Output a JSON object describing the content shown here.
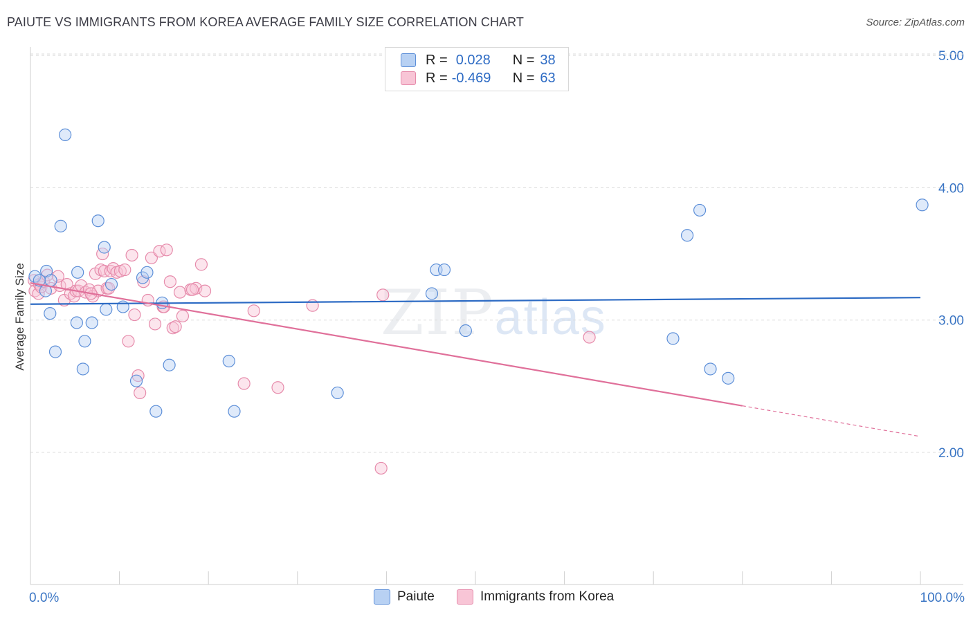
{
  "header": {
    "title": "PAIUTE VS IMMIGRANTS FROM KOREA AVERAGE FAMILY SIZE CORRELATION CHART",
    "source": "Source: ZipAtlas.com"
  },
  "legend": {
    "row1": {
      "r_label": "R =",
      "r_value": "0.028",
      "n_label": "N =",
      "n_value": "38"
    },
    "row2": {
      "r_label": "R =",
      "r_value": "-0.469",
      "n_label": "N =",
      "n_value": "63"
    },
    "series1": "Paiute",
    "series2": "Immigrants from Korea"
  },
  "watermark": {
    "zip": "ZIP",
    "atlas": "atlas"
  },
  "colors": {
    "paiute_fill": "#b8d1f3",
    "paiute_stroke": "#5d8fd8",
    "paiute_line": "#2d6bc4",
    "korea_fill": "#f8c5d6",
    "korea_stroke": "#e68bab",
    "korea_line": "#e0709a",
    "axis_text": "#3a75c4"
  },
  "chart_data": {
    "type": "scatter",
    "title": "PAIUTE VS IMMIGRANTS FROM KOREA AVERAGE FAMILY SIZE CORRELATION CHART",
    "xlabel": "",
    "ylabel": "Average Family Size",
    "xlim": [
      0,
      100
    ],
    "ylim": [
      1.05,
      5.1
    ],
    "x_tick_labels": [
      "0.0%",
      "100.0%"
    ],
    "y_ticks": [
      2.0,
      3.0,
      4.0,
      5.0
    ],
    "y_tick_labels": [
      "2.00",
      "3.00",
      "4.00",
      "5.00"
    ],
    "grid": true,
    "series": [
      {
        "name": "Paiute",
        "r": 0.028,
        "n": 38,
        "trend": {
          "x": [
            0,
            100
          ],
          "y": [
            3.12,
            3.17
          ]
        },
        "points": [
          [
            0.5,
            3.33
          ],
          [
            1.0,
            3.3
          ],
          [
            1.8,
            3.37
          ],
          [
            2.3,
            3.3
          ],
          [
            1.7,
            3.22
          ],
          [
            2.2,
            3.05
          ],
          [
            2.8,
            2.76
          ],
          [
            3.4,
            3.71
          ],
          [
            3.9,
            4.4
          ],
          [
            5.2,
            2.98
          ],
          [
            5.3,
            3.36
          ],
          [
            5.9,
            2.63
          ],
          [
            6.1,
            2.84
          ],
          [
            6.9,
            2.98
          ],
          [
            7.6,
            3.75
          ],
          [
            8.3,
            3.55
          ],
          [
            8.5,
            3.08
          ],
          [
            9.1,
            3.27
          ],
          [
            10.4,
            3.1
          ],
          [
            11.9,
            2.54
          ],
          [
            12.6,
            3.32
          ],
          [
            13.1,
            3.36
          ],
          [
            14.1,
            2.31
          ],
          [
            14.8,
            3.13
          ],
          [
            15.6,
            2.66
          ],
          [
            22.3,
            2.69
          ],
          [
            22.9,
            2.31
          ],
          [
            34.5,
            2.45
          ],
          [
            45.1,
            3.2
          ],
          [
            45.6,
            3.38
          ],
          [
            46.5,
            3.38
          ],
          [
            48.9,
            2.92
          ],
          [
            72.2,
            2.86
          ],
          [
            73.8,
            3.64
          ],
          [
            75.2,
            3.83
          ],
          [
            76.4,
            2.63
          ],
          [
            78.4,
            2.56
          ],
          [
            100.2,
            3.87
          ]
        ]
      },
      {
        "name": "Immigrants from Korea",
        "r": -0.469,
        "n": 63,
        "trend": {
          "x": [
            0,
            100
          ],
          "y": [
            3.28,
            2.12
          ],
          "solid_to_x": 80
        },
        "points": [
          [
            0.4,
            3.3
          ],
          [
            0.5,
            3.22
          ],
          [
            0.9,
            3.2
          ],
          [
            1.0,
            3.27
          ],
          [
            1.2,
            3.25
          ],
          [
            1.5,
            3.29
          ],
          [
            1.9,
            3.34
          ],
          [
            2.3,
            3.24
          ],
          [
            3.3,
            3.26
          ],
          [
            3.8,
            3.15
          ],
          [
            4.1,
            3.27
          ],
          [
            4.5,
            3.2
          ],
          [
            4.9,
            3.18
          ],
          [
            5.1,
            3.22
          ],
          [
            5.4,
            3.22
          ],
          [
            5.7,
            3.26
          ],
          [
            6.2,
            3.21
          ],
          [
            6.6,
            3.23
          ],
          [
            7.0,
            3.18
          ],
          [
            7.3,
            3.35
          ],
          [
            7.6,
            3.22
          ],
          [
            7.9,
            3.38
          ],
          [
            8.1,
            3.5
          ],
          [
            8.3,
            3.37
          ],
          [
            8.6,
            3.24
          ],
          [
            9.0,
            3.37
          ],
          [
            9.3,
            3.39
          ],
          [
            9.7,
            3.36
          ],
          [
            10.1,
            3.37
          ],
          [
            10.6,
            3.38
          ],
          [
            11.0,
            2.84
          ],
          [
            11.4,
            3.49
          ],
          [
            11.7,
            3.04
          ],
          [
            12.1,
            2.58
          ],
          [
            12.3,
            2.45
          ],
          [
            12.7,
            3.29
          ],
          [
            13.2,
            3.15
          ],
          [
            13.6,
            3.47
          ],
          [
            14.0,
            2.97
          ],
          [
            14.5,
            3.52
          ],
          [
            14.9,
            3.1
          ],
          [
            15.3,
            3.53
          ],
          [
            15.7,
            3.29
          ],
          [
            16.0,
            2.94
          ],
          [
            16.3,
            2.95
          ],
          [
            16.8,
            3.21
          ],
          [
            17.1,
            3.03
          ],
          [
            18.0,
            3.23
          ],
          [
            18.6,
            3.24
          ],
          [
            19.2,
            3.42
          ],
          [
            19.6,
            3.22
          ],
          [
            24.0,
            2.52
          ],
          [
            25.1,
            3.07
          ],
          [
            27.8,
            2.49
          ],
          [
            31.7,
            3.11
          ],
          [
            39.4,
            1.88
          ],
          [
            39.6,
            3.19
          ],
          [
            62.8,
            2.87
          ],
          [
            3.1,
            3.33
          ],
          [
            6.8,
            3.2
          ],
          [
            15.0,
            3.1
          ],
          [
            18.2,
            3.23
          ],
          [
            8.8,
            3.24
          ]
        ]
      }
    ]
  }
}
